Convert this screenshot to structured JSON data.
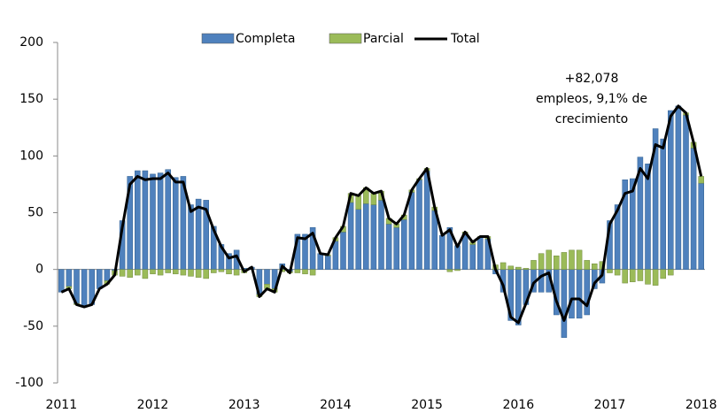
{
  "chart_data": {
    "type": "bar",
    "categories": [
      "2011",
      null,
      null,
      null,
      null,
      null,
      null,
      null,
      null,
      null,
      null,
      null,
      "2012",
      null,
      null,
      null,
      null,
      null,
      null,
      null,
      null,
      null,
      null,
      null,
      "2013",
      null,
      null,
      null,
      null,
      null,
      null,
      null,
      null,
      null,
      null,
      null,
      "2014",
      null,
      null,
      null,
      null,
      null,
      null,
      null,
      null,
      null,
      null,
      null,
      "2015",
      null,
      null,
      null,
      null,
      null,
      null,
      null,
      null,
      null,
      null,
      null,
      "2016",
      null,
      null,
      null,
      null,
      null,
      null,
      null,
      null,
      null,
      null,
      null,
      "2017",
      null,
      null,
      null,
      null,
      null,
      null,
      null,
      null,
      null,
      null,
      null,
      "2018"
    ],
    "series": [
      {
        "name": "Completa",
        "color": "#4f81bd",
        "values": [
          -20,
          -15,
          -30,
          -33,
          -31,
          -17,
          -10,
          -1,
          43,
          82,
          87,
          87,
          84,
          85,
          88,
          81,
          82,
          57,
          62,
          61,
          38,
          22,
          14,
          17,
          1,
          2,
          -22,
          -13,
          -17,
          5,
          -2,
          31,
          31,
          37,
          14,
          12,
          25,
          33,
          59,
          53,
          58,
          57,
          61,
          40,
          37,
          44,
          68,
          79,
          87,
          52,
          30,
          37,
          21,
          32,
          22,
          28,
          27,
          -4,
          -20,
          -45,
          -49,
          -31,
          -20,
          -20,
          -20,
          -40,
          -60,
          -43,
          -43,
          -40,
          -17,
          -12,
          43,
          57,
          79,
          80,
          99,
          93,
          124,
          115,
          140,
          144,
          136,
          107,
          76
        ]
      },
      {
        "name": "Parcial",
        "color": "#9bbb59",
        "values": [
          0,
          -2,
          -1,
          0,
          0,
          0,
          -3,
          -4,
          -6,
          -7,
          -5,
          -8,
          -4,
          -5,
          -3,
          -4,
          -5,
          -6,
          -7,
          -8,
          -3,
          -2,
          -4,
          -5,
          -3,
          0,
          -2,
          -4,
          -3,
          -2,
          -1,
          -3,
          -4,
          -5,
          0,
          1,
          3,
          5,
          8,
          12,
          14,
          10,
          8,
          5,
          3,
          4,
          2,
          1,
          2,
          3,
          0,
          -2,
          -1,
          1,
          2,
          1,
          2,
          4,
          6,
          3,
          2,
          1,
          8,
          14,
          17,
          12,
          15,
          17,
          17,
          8,
          5,
          7,
          -3,
          -5,
          -12,
          -11,
          -10,
          -13,
          -14,
          -8,
          -5,
          0,
          2,
          5,
          6
        ]
      },
      {
        "name": "Total",
        "color": "#000000",
        "type": "line",
        "values": [
          -20,
          -17,
          -31,
          -33,
          -31,
          -17,
          -13,
          -5,
          37,
          75,
          82,
          79,
          80,
          80,
          85,
          77,
          77,
          51,
          55,
          53,
          35,
          20,
          10,
          12,
          -2,
          2,
          -24,
          -17,
          -20,
          3,
          -3,
          28,
          27,
          32,
          14,
          13,
          28,
          38,
          67,
          65,
          72,
          67,
          69,
          45,
          40,
          48,
          70,
          80,
          89,
          55,
          30,
          35,
          20,
          33,
          24,
          29,
          29,
          0,
          -14,
          -42,
          -47,
          -30,
          -12,
          -6,
          -3,
          -28,
          -45,
          -26,
          -26,
          -32,
          -12,
          -5,
          40,
          52,
          67,
          69,
          89,
          80,
          110,
          107,
          135,
          144,
          138,
          112,
          82
        ]
      }
    ],
    "ylim": [
      -100,
      200
    ],
    "yticks": [
      -100,
      -50,
      0,
      50,
      100,
      150,
      200
    ],
    "annotation": [
      "+82,078",
      "empleos, 9,1% de",
      "crecimiento"
    ],
    "legend": "top"
  }
}
